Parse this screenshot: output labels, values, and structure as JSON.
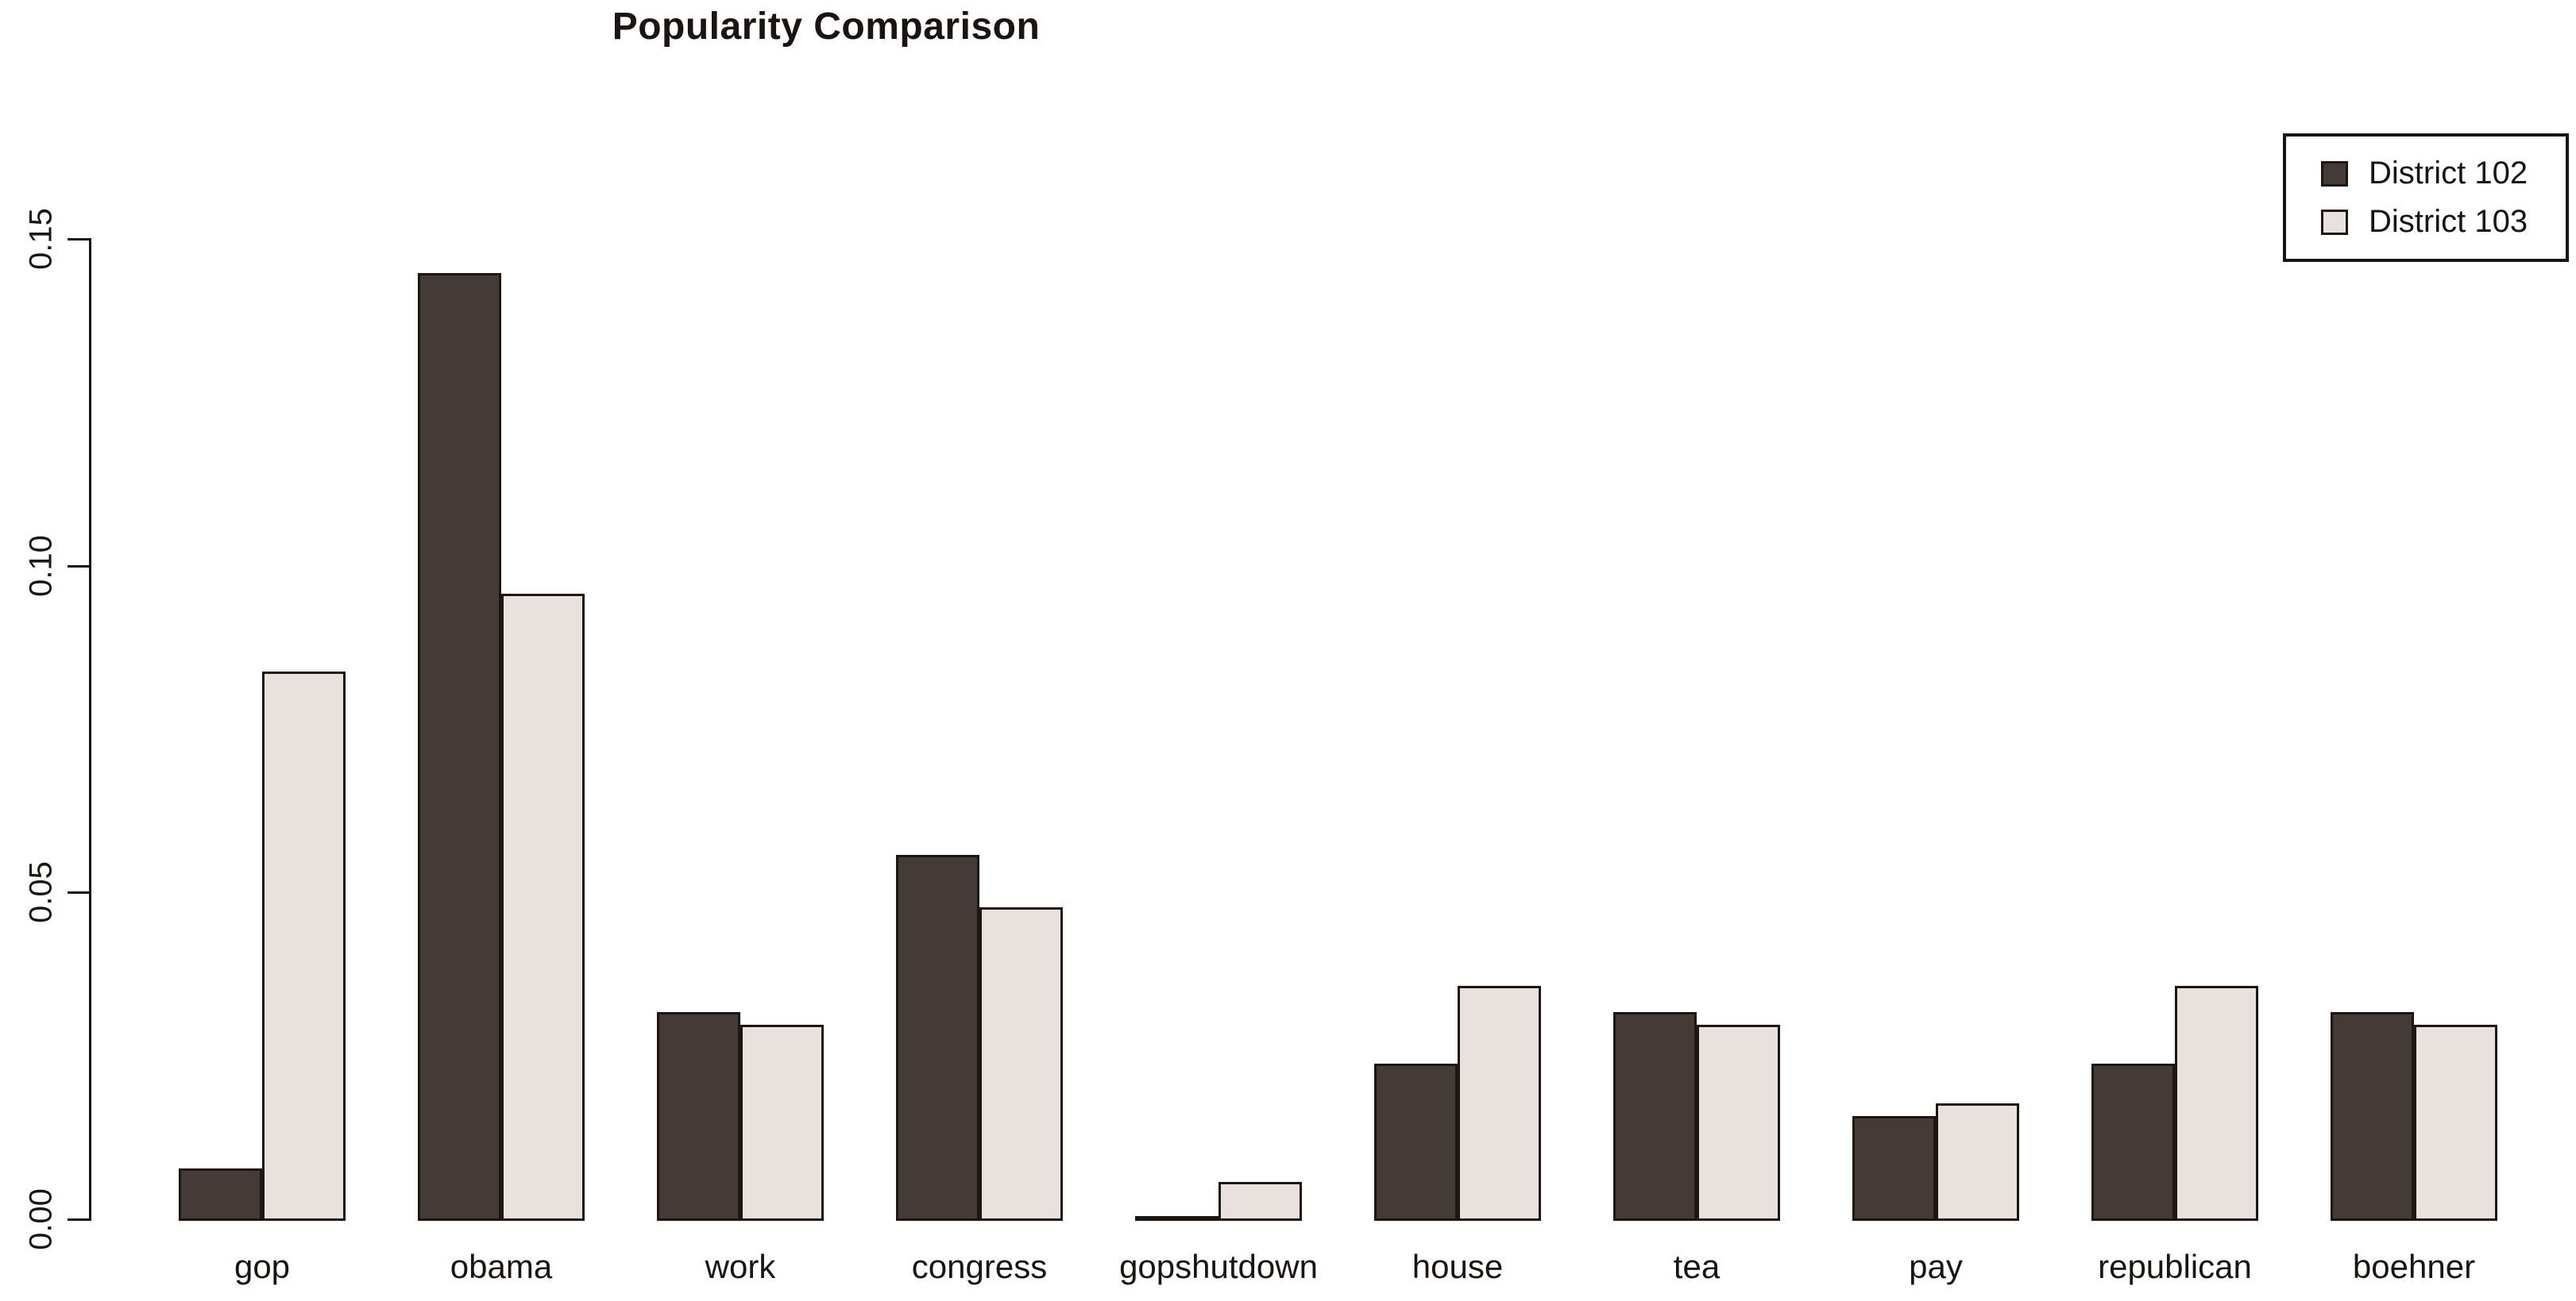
{
  "title": "Popularity Comparison",
  "chart_data": {
    "type": "bar",
    "title": "Popularity Comparison",
    "categories": [
      "gop",
      "obama",
      "work",
      "congress",
      "gopshutdown",
      "house",
      "tea",
      "pay",
      "republican",
      "boehner"
    ],
    "series": [
      {
        "name": "District 102",
        "color": "#443b36",
        "values": [
          0.008,
          0.145,
          0.032,
          0.056,
          0.0,
          0.024,
          0.032,
          0.016,
          0.024,
          0.032
        ]
      },
      {
        "name": "District 103",
        "color": "#e8e1dd",
        "values": [
          0.084,
          0.096,
          0.03,
          0.048,
          0.006,
          0.036,
          0.03,
          0.018,
          0.036,
          0.03
        ]
      }
    ],
    "xlabel": "",
    "ylabel": "",
    "ylim": [
      0,
      0.15
    ],
    "yticks": [
      "0.00",
      "0.05",
      "0.10",
      "0.15"
    ],
    "ytick_values": [
      0.0,
      0.05,
      0.1,
      0.15
    ],
    "grid": false,
    "legend_position": "top-right",
    "bar_border_color": "#1d1611",
    "axis_color": "#1a1512"
  }
}
